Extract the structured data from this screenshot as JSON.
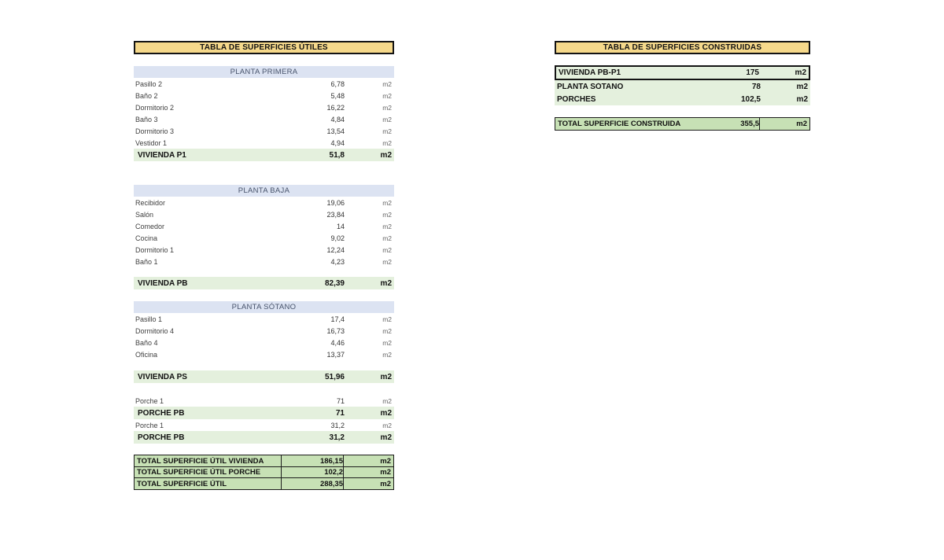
{
  "colors": {
    "header_gold": "#f6d98b",
    "section_blue": "#dce3f2",
    "subtotal_light_green": "#e4f0dd",
    "total_medium_green": "#c7e1b5",
    "border_black": "#141414"
  },
  "left_table": {
    "title": "TABLA DE SUPERFICIES ÚTILES",
    "sections": [
      {
        "header": "PLANTA PRIMERA",
        "rows": [
          {
            "label": "Pasillo 2",
            "value": "6,78",
            "unit": "m2"
          },
          {
            "label": "Baño 2",
            "value": "5,48",
            "unit": "m2"
          },
          {
            "label": "Dormitorio 2",
            "value": "16,22",
            "unit": "m2"
          },
          {
            "label": "Baño 3",
            "value": "4,84",
            "unit": "m2"
          },
          {
            "label": "Dormitorio 3",
            "value": "13,54",
            "unit": "m2"
          },
          {
            "label": "Vestidor 1",
            "value": "4,94",
            "unit": "m2"
          }
        ],
        "subtotal": {
          "label": "VIVIENDA P1",
          "value": "51,8",
          "unit": "m2"
        }
      },
      {
        "header": "PLANTA BAJA",
        "rows": [
          {
            "label": "Recibidor",
            "value": "19,06",
            "unit": "m2"
          },
          {
            "label": "Salón",
            "value": "23,84",
            "unit": "m2"
          },
          {
            "label": "Comedor",
            "value": "14",
            "unit": "m2"
          },
          {
            "label": "Cocina",
            "value": "9,02",
            "unit": "m2"
          },
          {
            "label": "Dormitorio 1",
            "value": "12,24",
            "unit": "m2"
          },
          {
            "label": "Baño 1",
            "value": "4,23",
            "unit": "m2"
          }
        ],
        "subtotal": {
          "label": "VIVIENDA PB",
          "value": "82,39",
          "unit": "m2"
        }
      },
      {
        "header": "PLANTA SÓTANO",
        "rows": [
          {
            "label": "Pasillo 1",
            "value": "17,4",
            "unit": "m2"
          },
          {
            "label": "Dormitorio 4",
            "value": "16,73",
            "unit": "m2"
          },
          {
            "label": "Baño 4",
            "value": "4,46",
            "unit": "m2"
          },
          {
            "label": "Oficina",
            "value": "13,37",
            "unit": "m2"
          }
        ],
        "subtotal": {
          "label": "VIVIENDA PS",
          "value": "51,96",
          "unit": "m2"
        }
      }
    ],
    "porches": [
      {
        "label": "Porche 1",
        "value": "71",
        "unit": "m2"
      },
      {
        "label": "PORCHE PB",
        "value": "71",
        "unit": "m2"
      },
      {
        "label": "Porche 1",
        "value": "31,2",
        "unit": "m2"
      },
      {
        "label": "PORCHE PB",
        "value": "31,2",
        "unit": "m2"
      }
    ],
    "totals": [
      {
        "label": "TOTAL SUPERFICIE ÚTIL VIVIENDA",
        "value": "186,15",
        "unit": "m2"
      },
      {
        "label": "TOTAL SUPERFICIE ÚTIL PORCHE",
        "value": "102,2",
        "unit": "m2"
      }
    ],
    "grand_total": {
      "label": "TOTAL SUPERFICIE ÚTIL",
      "value": "288,35",
      "unit": "m2"
    }
  },
  "right_table": {
    "title": "TABLA DE SUPERFICIES CONSTRUIDAS",
    "rows": [
      {
        "label": "VIVIENDA PB-P1",
        "value": "175",
        "unit": "m2"
      },
      {
        "label": "PLANTA SÓTANO",
        "value": "78",
        "unit": "m2"
      },
      {
        "label": "PORCHES",
        "value": "102,5",
        "unit": "m2"
      }
    ],
    "total": {
      "label": "TOTAL SUPERFICIE CONSTRUIDA",
      "value": "355,5",
      "unit": "m2"
    }
  }
}
